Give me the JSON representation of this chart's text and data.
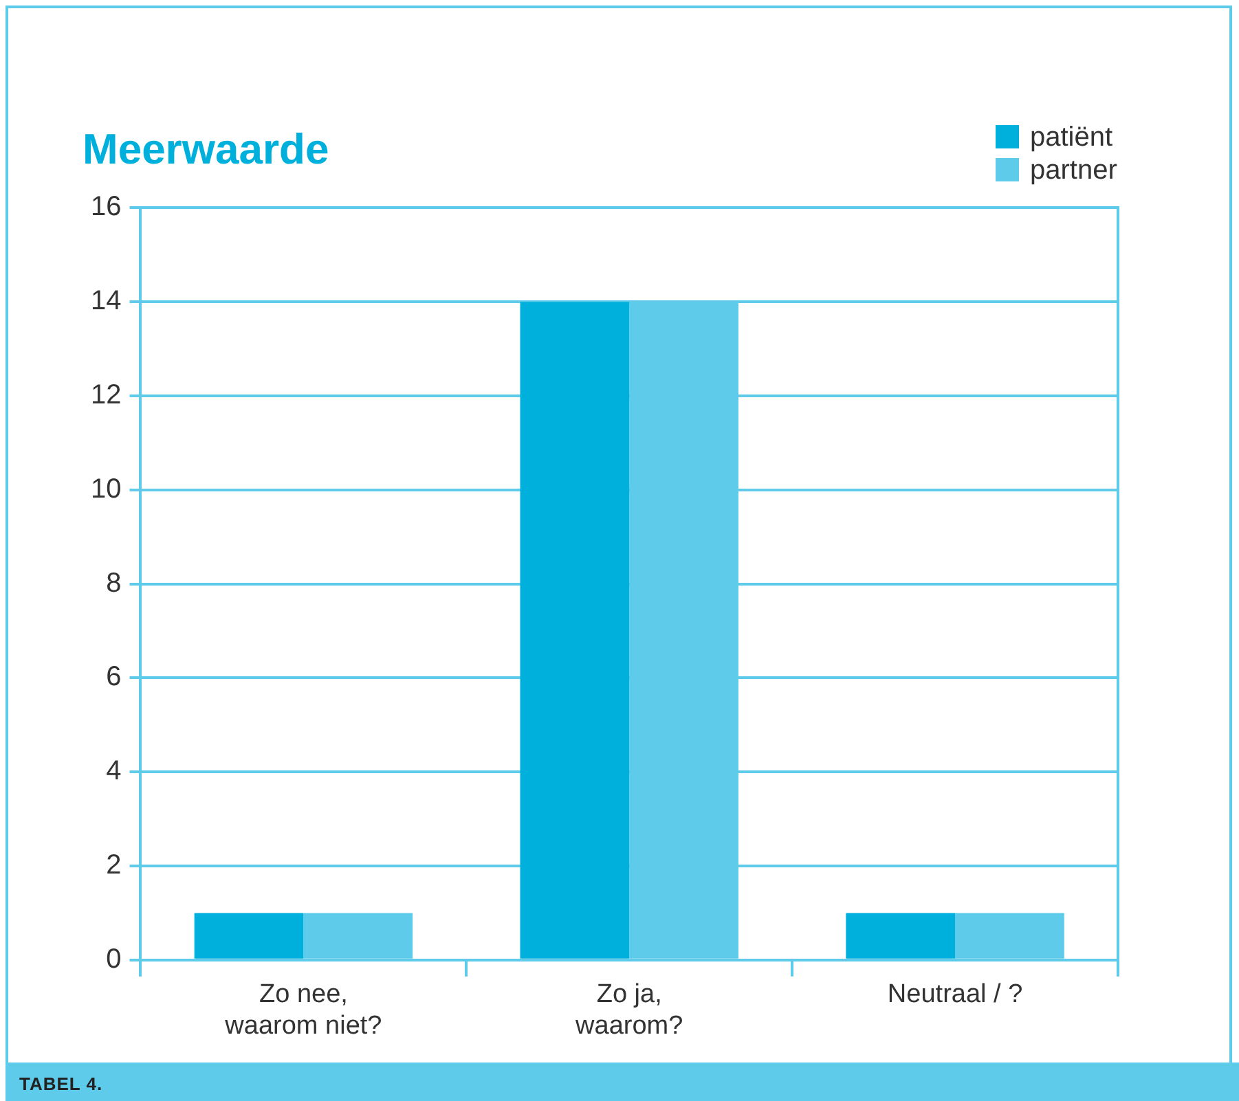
{
  "chart_data": {
    "type": "bar",
    "title": "Meerwaarde",
    "categories": [
      "Zo nee,\nwaarom niet?",
      "Zo ja,\nwaarom?",
      "Neutraal / ?"
    ],
    "series": [
      {
        "name": "patiënt",
        "color": "#00b0dc",
        "values": [
          1,
          14,
          1
        ]
      },
      {
        "name": "partner",
        "color": "#5ecbea",
        "values": [
          1,
          14,
          1
        ]
      }
    ],
    "ylim": [
      0,
      16
    ],
    "yticks": [
      0,
      2,
      4,
      6,
      8,
      10,
      12,
      14,
      16
    ],
    "grid": "y",
    "legend": "top right",
    "annotations": [
      "TABEL 4."
    ]
  }
}
